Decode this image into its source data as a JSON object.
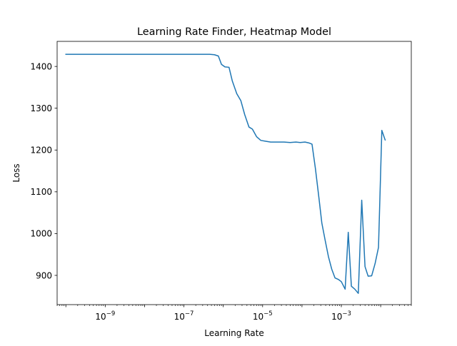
{
  "chart_data": {
    "type": "line",
    "title": "Learning Rate Finder, Heatmap Model",
    "xlabel": "Learning Rate",
    "ylabel": "Loss",
    "xscale": "log",
    "xlim": [
      6e-11,
      0.06
    ],
    "ylim": [
      830,
      1460
    ],
    "grid": false,
    "legend": "none",
    "colors": {
      "line": "#1f77b4",
      "axes": "#000000",
      "background": "#ffffff"
    },
    "x_ticks": [
      {
        "value": 1e-09,
        "base": "10",
        "exp": "−9"
      },
      {
        "value": 1e-07,
        "base": "10",
        "exp": "−7"
      },
      {
        "value": 1e-05,
        "base": "10",
        "exp": "−5"
      },
      {
        "value": 0.001,
        "base": "10",
        "exp": "−3"
      }
    ],
    "y_ticks": [
      {
        "value": 900,
        "label": "900"
      },
      {
        "value": 1000,
        "label": "1000"
      },
      {
        "value": 1100,
        "label": "1100"
      },
      {
        "value": 1200,
        "label": "1200"
      },
      {
        "value": 1300,
        "label": "1300"
      },
      {
        "value": 1400,
        "label": "1400"
      }
    ],
    "series": [
      {
        "values": [
          [
            1e-10,
            1429
          ],
          [
            3e-09,
            1429
          ],
          [
            1e-07,
            1429
          ],
          [
            4.5e-07,
            1429
          ],
          [
            6e-07,
            1428
          ],
          [
            7.5e-07,
            1425
          ],
          [
            9e-07,
            1405
          ],
          [
            1.1e-06,
            1399
          ],
          [
            1.4e-06,
            1398
          ],
          [
            1.7e-06,
            1365
          ],
          [
            2.2e-06,
            1335
          ],
          [
            2.8e-06,
            1318
          ],
          [
            3.5e-06,
            1285
          ],
          [
            4.5e-06,
            1255
          ],
          [
            5.5e-06,
            1250
          ],
          [
            7e-06,
            1232
          ],
          [
            9e-06,
            1223
          ],
          [
            1.2e-05,
            1221
          ],
          [
            1.6e-05,
            1219
          ],
          [
            2.5e-05,
            1219
          ],
          [
            3.5e-05,
            1219
          ],
          [
            5e-05,
            1218
          ],
          [
            7e-05,
            1219
          ],
          [
            9e-05,
            1218
          ],
          [
            0.00012,
            1219
          ],
          [
            0.00015,
            1217
          ],
          [
            0.00018,
            1214
          ],
          [
            0.00022,
            1155
          ],
          [
            0.00027,
            1085
          ],
          [
            0.00032,
            1025
          ],
          [
            0.00039,
            983
          ],
          [
            0.00047,
            945
          ],
          [
            0.00057,
            915
          ],
          [
            0.00069,
            894
          ],
          [
            0.00085,
            890
          ],
          [
            0.001,
            885
          ],
          [
            0.00125,
            867
          ],
          [
            0.0015,
            1003
          ],
          [
            0.0018,
            874
          ],
          [
            0.0022,
            867
          ],
          [
            0.0027,
            857
          ],
          [
            0.0033,
            1080
          ],
          [
            0.004,
            921
          ],
          [
            0.0048,
            898
          ],
          [
            0.0059,
            899
          ],
          [
            0.0072,
            928
          ],
          [
            0.0088,
            967
          ],
          [
            0.0107,
            1247
          ],
          [
            0.013,
            1224
          ]
        ]
      }
    ]
  }
}
